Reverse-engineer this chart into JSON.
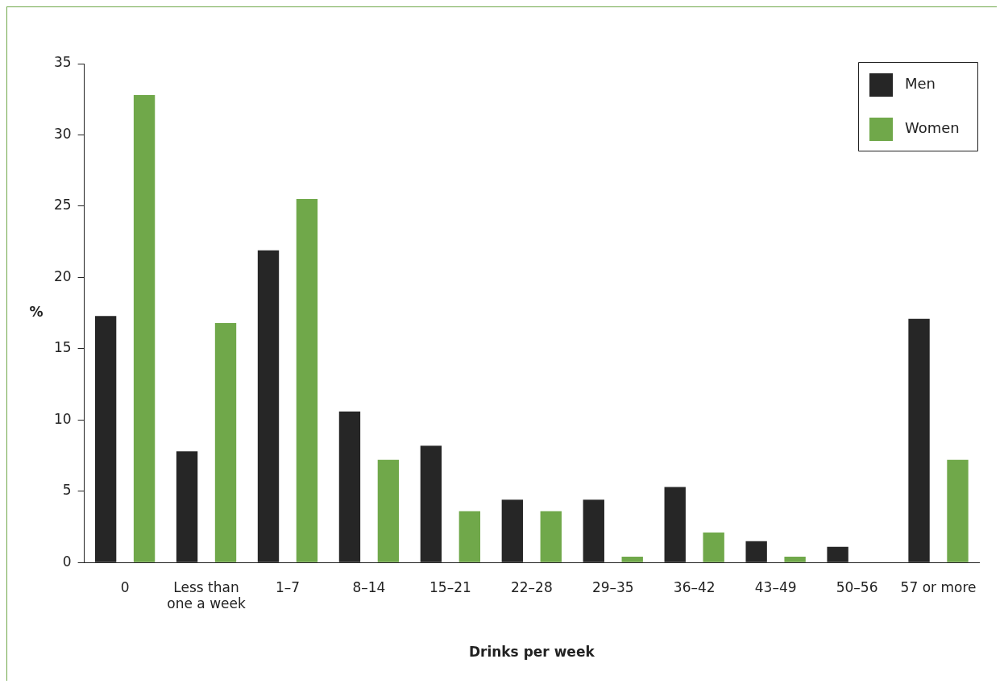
{
  "chart_data": {
    "type": "bar",
    "xlabel": "Drinks per week",
    "ylabel": "%",
    "categories": [
      "0",
      "Less than one a week",
      "1–7",
      "8–14",
      "15–21",
      "22–28",
      "29–35",
      "36–42",
      "43–49",
      "50–56",
      "57 or more"
    ],
    "series": [
      {
        "name": "Men",
        "color": "#262626",
        "values": [
          17.3,
          7.8,
          21.9,
          10.6,
          8.2,
          4.4,
          4.4,
          5.3,
          1.5,
          1.1,
          17.1
        ]
      },
      {
        "name": "Women",
        "color": "#70a84a",
        "values": [
          32.8,
          16.8,
          25.5,
          7.2,
          3.6,
          3.6,
          0.4,
          2.1,
          0.4,
          0,
          7.2
        ]
      }
    ],
    "ylim": [
      0,
      35
    ],
    "yticks": [
      0,
      5,
      10,
      15,
      20,
      25,
      30,
      35
    ],
    "grid": false,
    "legend": "top right"
  }
}
